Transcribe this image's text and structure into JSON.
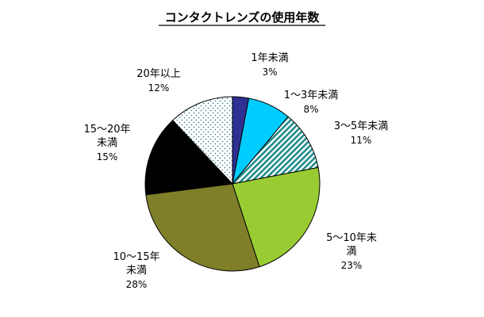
{
  "chart_data": {
    "type": "pie",
    "title": "コンタクトレンズの使用年数",
    "start": "12 o'clock",
    "direction": "clockwise",
    "slices": [
      {
        "label_lines": [
          "1年未満"
        ],
        "percent_label": "3%",
        "value": 3,
        "color": "#2e3192",
        "pattern": "solid"
      },
      {
        "label_lines": [
          "1～3年未満"
        ],
        "percent_label": "8%",
        "value": 8,
        "color": "#00ccff",
        "pattern": "solid"
      },
      {
        "label_lines": [
          "3～5年未満"
        ],
        "percent_label": "11%",
        "value": 11,
        "color": "#1f8c8c",
        "pattern": "diagonal-stripes"
      },
      {
        "label_lines": [
          "5～10年未",
          "満"
        ],
        "percent_label": "23%",
        "value": 23,
        "color": "#99cc33",
        "pattern": "solid"
      },
      {
        "label_lines": [
          "10～15年",
          "未満"
        ],
        "percent_label": "28%",
        "value": 28,
        "color": "#7f7f2a",
        "pattern": "solid"
      },
      {
        "label_lines": [
          "15～20年",
          "未満"
        ],
        "percent_label": "15%",
        "value": 15,
        "color": "#000000",
        "pattern": "solid"
      },
      {
        "label_lines": [
          "20年以上"
        ],
        "percent_label": "12%",
        "value": 12,
        "color": "#ffffff",
        "pattern": "dots"
      }
    ]
  }
}
